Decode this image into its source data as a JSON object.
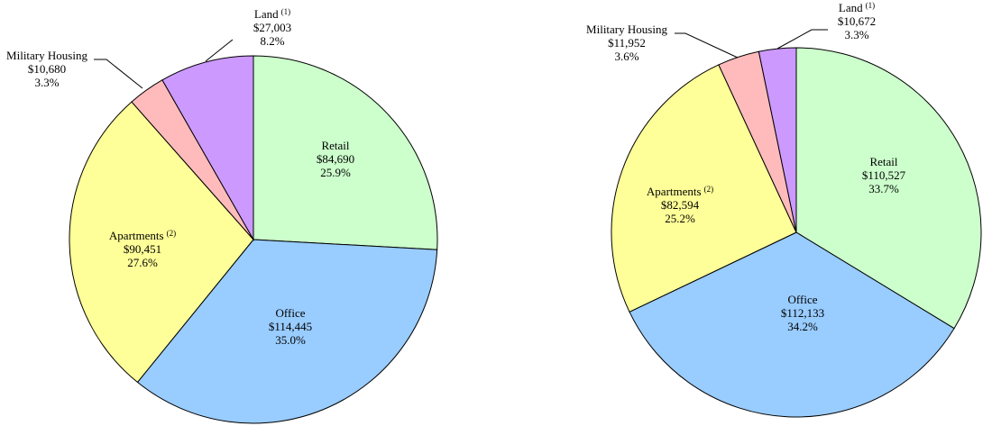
{
  "colors": {
    "Retail": "#ccffcc",
    "Office": "#99ccff",
    "Apartments": "#ffff99",
    "Military Housing": "#ffbbbb",
    "Land": "#cc99ff"
  },
  "chart_data": [
    {
      "type": "pie",
      "title": "",
      "slices": [
        {
          "label": "Retail",
          "sup": "",
          "value": 84690,
          "value_label": "$84,690",
          "pct_label": "25.9%"
        },
        {
          "label": "Office",
          "sup": "",
          "value": 114445,
          "value_label": "$114,445",
          "pct_label": "35.0%"
        },
        {
          "label": "Apartments",
          "sup": "(2)",
          "value": 90451,
          "value_label": "$90,451",
          "pct_label": "27.6%"
        },
        {
          "label": "Military Housing",
          "sup": "",
          "value": 10680,
          "value_label": "$10,680",
          "pct_label": "3.3%"
        },
        {
          "label": "Land",
          "sup": "(1)",
          "value": 27003,
          "value_label": "$27,003",
          "pct_label": "8.2%"
        }
      ]
    },
    {
      "type": "pie",
      "title": "",
      "slices": [
        {
          "label": "Retail",
          "sup": "",
          "value": 110527,
          "value_label": "$110,527",
          "pct_label": "33.7%"
        },
        {
          "label": "Office",
          "sup": "",
          "value": 112133,
          "value_label": "$112,133",
          "pct_label": "34.2%"
        },
        {
          "label": "Apartments",
          "sup": "(2)",
          "value": 82594,
          "value_label": "$82,594",
          "pct_label": "25.2%"
        },
        {
          "label": "Military Housing",
          "sup": "",
          "value": 11952,
          "value_label": "$11,952",
          "pct_label": "3.6%"
        },
        {
          "label": "Land",
          "sup": "(1)",
          "value": 10672,
          "value_label": "$10,672",
          "pct_label": "3.3%"
        }
      ]
    }
  ]
}
